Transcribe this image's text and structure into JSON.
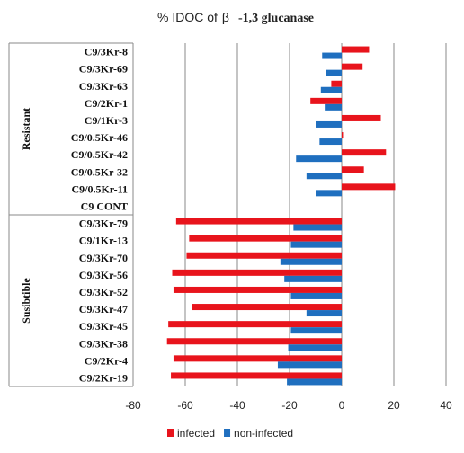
{
  "chart_data": {
    "type": "bar",
    "orientation": "horizontal",
    "title_prefix": "% IDOC of",
    "title_symbol": "β",
    "title_suffix": "-1,3 glucanase",
    "xlim": [
      -80,
      40
    ],
    "xticks": [
      "-80",
      "-60",
      "-40",
      "-20",
      "0",
      "20",
      "40"
    ],
    "grid": true,
    "legend_position": "bottom",
    "groups": [
      {
        "name": "Resistant",
        "start": 0,
        "end": 9
      },
      {
        "name": "Susibtible",
        "start": 10,
        "end": 19
      }
    ],
    "categories": [
      "C9/3Kr-8",
      "C9/3Kr-69",
      "C9/3Kr-63",
      "C9/2Kr-1",
      "C9/1Kr-3",
      "C9/0.5Kr-46",
      "C9/0.5Kr-42",
      "C9/0.5Kr-32",
      "C9/0.5Kr-11",
      "C9 CONT",
      "C9/3Kr-79",
      "C9/1Kr-13",
      "C9/3Kr-70",
      "C9/3Kr-56",
      "C9/3Kr-52",
      "C9/3Kr-47",
      "C9/3Kr-45",
      "C9/3Kr-38",
      "C9/2Kr-4",
      "C9/2Kr-19"
    ],
    "series": [
      {
        "name": "infected",
        "color": "#e8141c",
        "values": [
          10.5,
          8,
          -4,
          -12,
          15,
          0.5,
          17,
          8.5,
          20.5,
          0,
          -63.5,
          -58.5,
          -59.5,
          -65,
          -64.5,
          -57.5,
          -66.5,
          -67,
          -64.5,
          -65.5
        ]
      },
      {
        "name": "non-infected",
        "color": "#1f6fbf",
        "values": [
          -7.5,
          -6,
          -8,
          -6.5,
          -10,
          -8.5,
          -17.5,
          -13.5,
          -10,
          0,
          -18.5,
          -19.5,
          -23.5,
          -22,
          -19.5,
          -13.5,
          -19.5,
          -20.5,
          -24.5,
          -21
        ]
      }
    ]
  }
}
